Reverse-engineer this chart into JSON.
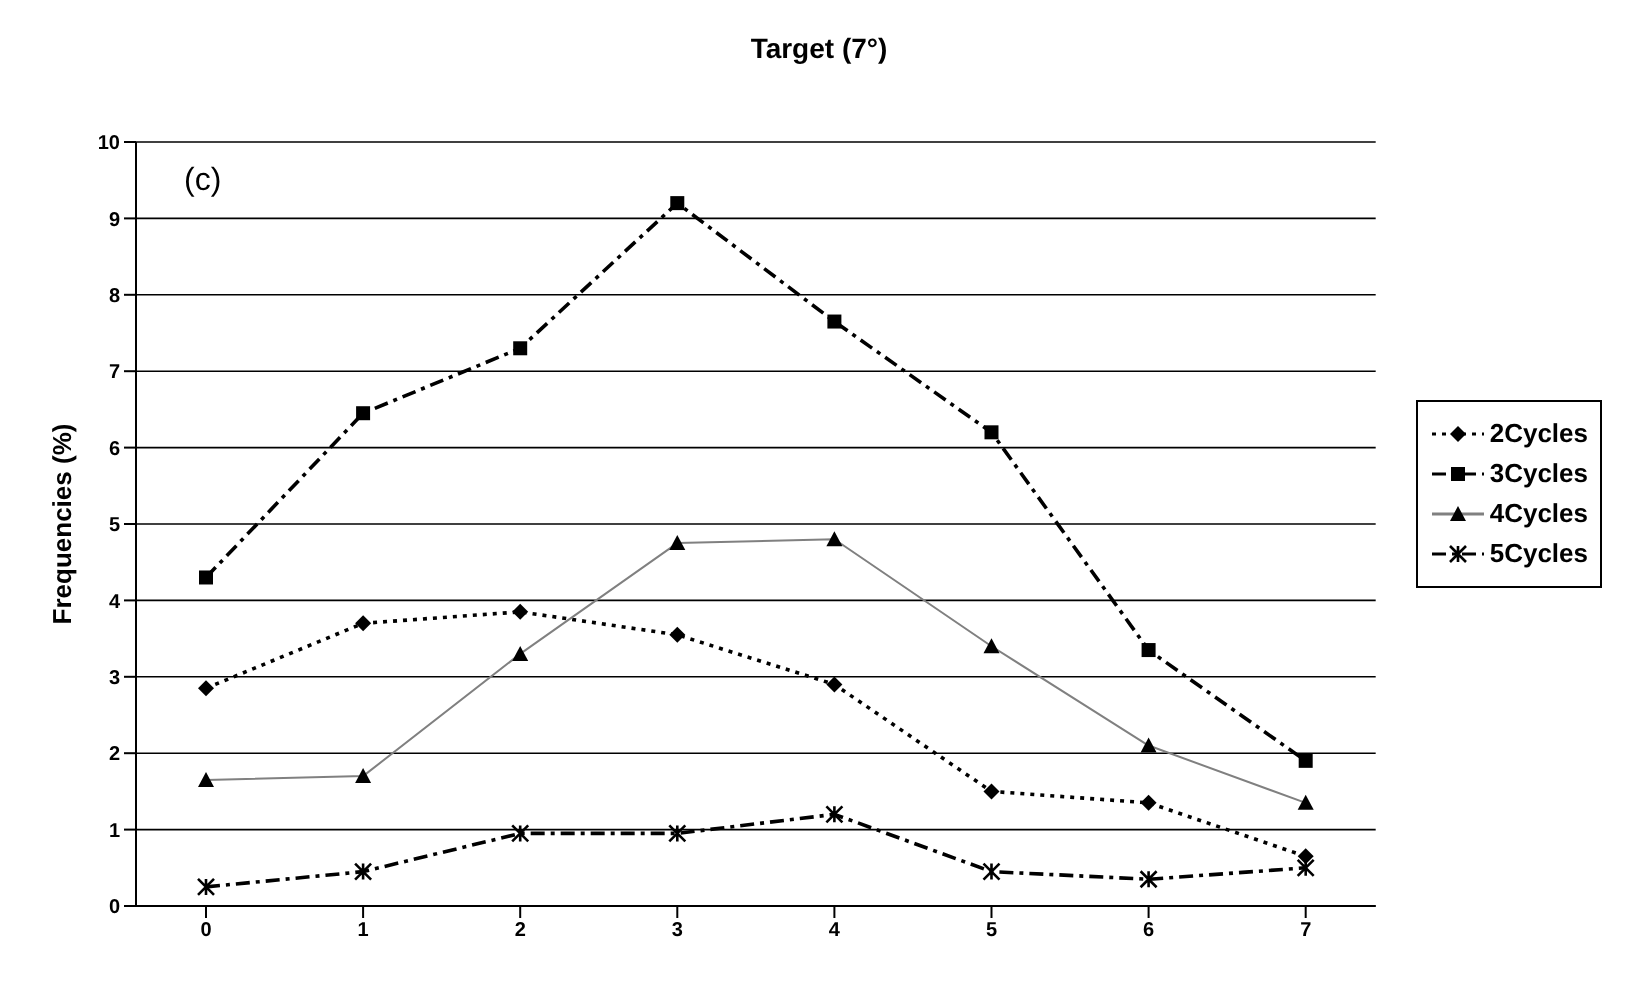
{
  "chart_data": {
    "type": "line",
    "title": "Target (7°)",
    "ylabel": "Frequencies (%)",
    "annotations": [
      "(c)"
    ],
    "categories": [
      "0",
      "1",
      "2",
      "3",
      "4",
      "5",
      "6",
      "7"
    ],
    "series": [
      {
        "name": "2Cycles",
        "color": "#000000",
        "marker": "diamond",
        "line_style": "dotted",
        "values": [
          2.85,
          3.7,
          3.85,
          3.55,
          2.9,
          1.5,
          1.35,
          0.65
        ]
      },
      {
        "name": "3Cycles",
        "color": "#000000",
        "marker": "square",
        "line_style": "dashed",
        "values": [
          4.3,
          6.45,
          7.3,
          9.2,
          7.65,
          6.2,
          3.35,
          1.9
        ]
      },
      {
        "name": "4Cycles",
        "color": "#808080",
        "marker": "triangle",
        "line_style": "solid",
        "values": [
          1.65,
          1.7,
          3.3,
          4.75,
          4.8,
          3.4,
          2.1,
          1.35
        ]
      },
      {
        "name": "5Cycles",
        "color": "#000000",
        "marker": "cross",
        "line_style": "dashed",
        "values": [
          0.25,
          0.45,
          0.95,
          0.95,
          1.2,
          0.45,
          0.35,
          0.5
        ]
      }
    ],
    "ylim": [
      0,
      10
    ],
    "yticks": [
      0,
      1,
      2,
      3,
      4,
      5,
      6,
      7,
      8,
      9,
      10
    ],
    "grid": "y",
    "legend": "right"
  }
}
